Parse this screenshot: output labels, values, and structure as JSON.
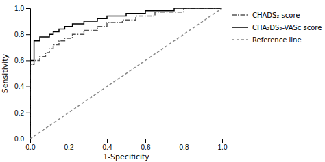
{
  "chart_data": {
    "type": "line",
    "xlabel": "1-Specificity",
    "ylabel": "Sensitivity",
    "xlim": [
      0.0,
      1.0
    ],
    "ylim": [
      0.0,
      1.0
    ],
    "xticks": [
      {
        "value": 0.0,
        "label": "0.0"
      },
      0.2,
      0.4,
      0.6,
      0.8,
      {
        "value": 1.0,
        "label": "1.0"
      }
    ],
    "yticks": [
      {
        "value": 0.0,
        "label": "0.0"
      },
      0.2,
      0.4,
      0.6,
      0.8,
      {
        "value": 1.0,
        "label": "1.0"
      }
    ],
    "grid": false,
    "legend": "right",
    "series": [
      {
        "name": "CHADS₂ score",
        "color": "#555555",
        "line_style": "dashdot",
        "x": [
          0.0,
          0.0,
          0.02,
          0.02,
          0.05,
          0.05,
          0.08,
          0.08,
          0.1,
          0.1,
          0.12,
          0.12,
          0.15,
          0.15,
          0.18,
          0.18,
          0.22,
          0.22,
          0.25,
          0.28,
          0.28,
          0.32,
          0.35,
          0.35,
          0.4,
          0.4,
          0.45,
          0.48,
          0.48,
          0.55,
          0.55,
          0.65,
          0.65,
          0.8,
          0.8,
          1.0
        ],
        "values": [
          0.0,
          0.57,
          0.57,
          0.6,
          0.6,
          0.63,
          0.63,
          0.66,
          0.66,
          0.69,
          0.69,
          0.72,
          0.72,
          0.75,
          0.75,
          0.77,
          0.77,
          0.8,
          0.8,
          0.8,
          0.83,
          0.83,
          0.83,
          0.86,
          0.86,
          0.89,
          0.89,
          0.89,
          0.91,
          0.91,
          0.94,
          0.94,
          0.97,
          0.97,
          1.0,
          1.0
        ]
      },
      {
        "name": "CHA₂DS₂-VASc score",
        "color": "#000000",
        "line_style": "solid",
        "x": [
          0.0,
          0.0,
          0.02,
          0.02,
          0.05,
          0.05,
          0.08,
          0.1,
          0.1,
          0.12,
          0.12,
          0.15,
          0.15,
          0.18,
          0.18,
          0.22,
          0.22,
          0.25,
          0.28,
          0.28,
          0.32,
          0.35,
          0.35,
          0.4,
          0.4,
          0.5,
          0.5,
          0.6,
          0.6,
          0.75,
          0.75,
          1.0
        ],
        "values": [
          0.0,
          0.6,
          0.6,
          0.75,
          0.75,
          0.78,
          0.78,
          0.78,
          0.8,
          0.8,
          0.82,
          0.82,
          0.84,
          0.84,
          0.86,
          0.86,
          0.88,
          0.88,
          0.88,
          0.9,
          0.9,
          0.9,
          0.92,
          0.92,
          0.94,
          0.94,
          0.96,
          0.96,
          0.98,
          0.98,
          1.0,
          1.0
        ]
      },
      {
        "name": "Reference line",
        "color": "#888888",
        "line_style": "dashed",
        "x": [
          0.0,
          1.0
        ],
        "values": [
          0.0,
          1.0
        ]
      }
    ]
  }
}
